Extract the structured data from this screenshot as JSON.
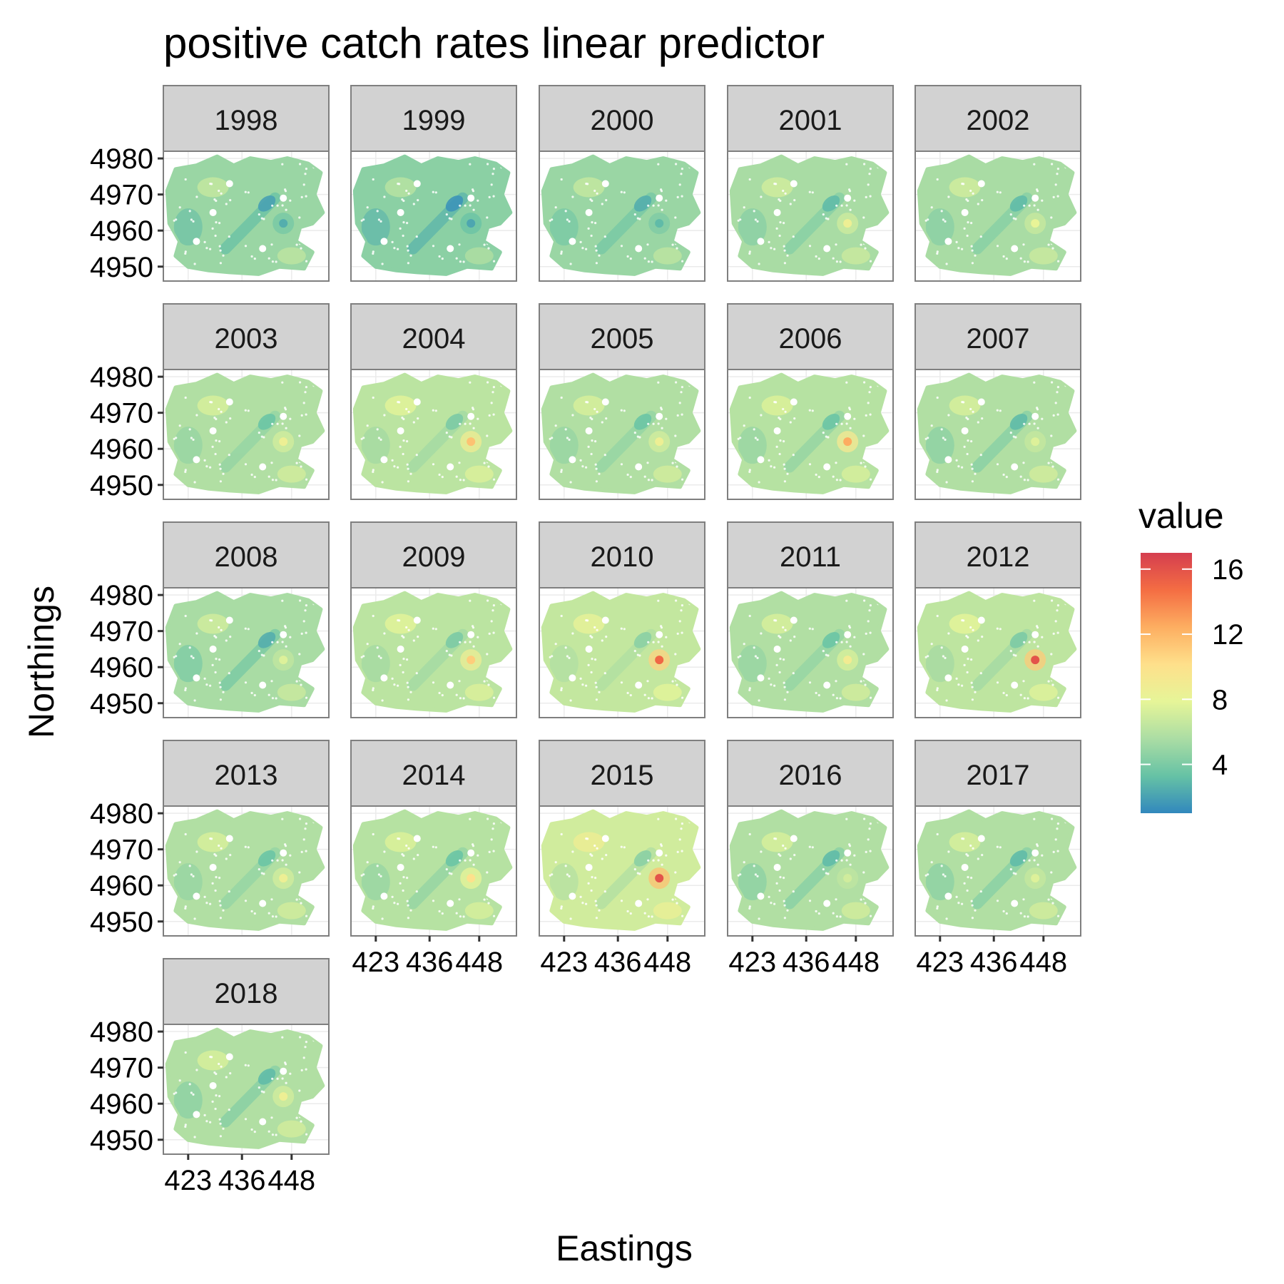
{
  "chart_data": {
    "type": "heatmap",
    "title": "positive catch rates linear predictor",
    "xlabel": "Eastings",
    "ylabel": "Northings",
    "facets": [
      "1998",
      "1999",
      "2000",
      "2001",
      "2002",
      "2003",
      "2004",
      "2005",
      "2006",
      "2007",
      "2008",
      "2009",
      "2010",
      "2011",
      "2012",
      "2013",
      "2014",
      "2015",
      "2016",
      "2017",
      "2018"
    ],
    "x_ticks": [
      "423",
      "436",
      "448"
    ],
    "x_tick_values": [
      423,
      436,
      448
    ],
    "y_ticks": [
      "4980",
      "4970",
      "4960",
      "4950"
    ],
    "y_tick_values": [
      4980,
      4970,
      4960,
      4950
    ],
    "xlim": [
      417,
      457
    ],
    "ylim": [
      4946,
      4982
    ],
    "legend": {
      "title": "value",
      "ticks": [
        "16",
        "12",
        "8",
        "4"
      ],
      "tick_values": [
        16,
        12,
        8,
        4
      ],
      "range": [
        1,
        17
      ],
      "position": "right",
      "colors": [
        "#3288bd",
        "#66c2a5",
        "#abdda4",
        "#e6f598",
        "#fee08b",
        "#fdae61",
        "#f46d43",
        "#d53e4f"
      ]
    },
    "panel_hotspot_value": [
      2.5,
      2.2,
      3.0,
      8.5,
      8.0,
      8.5,
      11.5,
      8.5,
      12.5,
      7.5,
      7.5,
      11.0,
      15.0,
      9.0,
      16.0,
      8.5,
      10.0,
      16.0,
      7.0,
      7.5,
      8.5
    ],
    "panel_low_value": [
      2.0,
      1.5,
      2.5,
      3.0,
      3.0,
      3.5,
      4.0,
      3.5,
      3.5,
      3.0,
      2.5,
      4.0,
      4.5,
      3.5,
      4.0,
      3.5,
      3.5,
      4.5,
      3.0,
      3.0,
      3.0
    ],
    "panel_base_value": [
      5.0,
      4.5,
      5.0,
      5.5,
      5.5,
      5.8,
      6.2,
      5.8,
      6.0,
      5.8,
      5.5,
      6.2,
      6.5,
      5.8,
      6.3,
      5.8,
      6.0,
      7.0,
      5.8,
      5.8,
      5.8
    ],
    "grid": true
  }
}
